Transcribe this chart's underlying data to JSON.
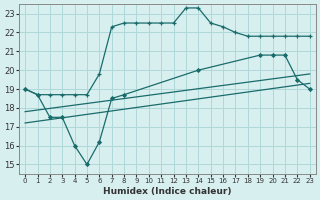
{
  "xlabel": "Humidex (Indice chaleur)",
  "ylabel": "",
  "xlim": [
    -0.5,
    23.5
  ],
  "ylim": [
    14.5,
    23.5
  ],
  "xticks": [
    0,
    1,
    2,
    3,
    4,
    5,
    6,
    7,
    8,
    9,
    10,
    11,
    12,
    13,
    14,
    15,
    16,
    17,
    18,
    19,
    20,
    21,
    22,
    23
  ],
  "yticks": [
    15,
    16,
    17,
    18,
    19,
    20,
    21,
    22,
    23
  ],
  "bg_color": "#d8eff0",
  "line_color": "#1a6b6b",
  "grid_color": "#b0d8d8",
  "line1_x": [
    0,
    1,
    2,
    3,
    4,
    5,
    6,
    7,
    8,
    9,
    10,
    11,
    12,
    13,
    14,
    15,
    16,
    17,
    18,
    19,
    20,
    21,
    22,
    23
  ],
  "line1_y": [
    19.0,
    18.7,
    18.7,
    18.7,
    18.7,
    18.7,
    19.8,
    22.3,
    22.5,
    22.5,
    22.5,
    22.5,
    22.5,
    23.3,
    23.3,
    22.5,
    22.3,
    22.0,
    21.8,
    21.8,
    21.8,
    21.8,
    21.8,
    21.8
  ],
  "line2_x": [
    0,
    1,
    2,
    3,
    4,
    5,
    6,
    7,
    8,
    14,
    19,
    20,
    21,
    22,
    23
  ],
  "line2_y": [
    19.0,
    18.7,
    17.5,
    17.5,
    16.0,
    15.0,
    16.2,
    18.5,
    18.7,
    20.0,
    20.8,
    20.8,
    20.8,
    19.5,
    19.0
  ],
  "line3_x": [
    0,
    23
  ],
  "line3_y": [
    17.2,
    19.3
  ],
  "line4_x": [
    0,
    23
  ],
  "line4_y": [
    17.8,
    19.8
  ]
}
